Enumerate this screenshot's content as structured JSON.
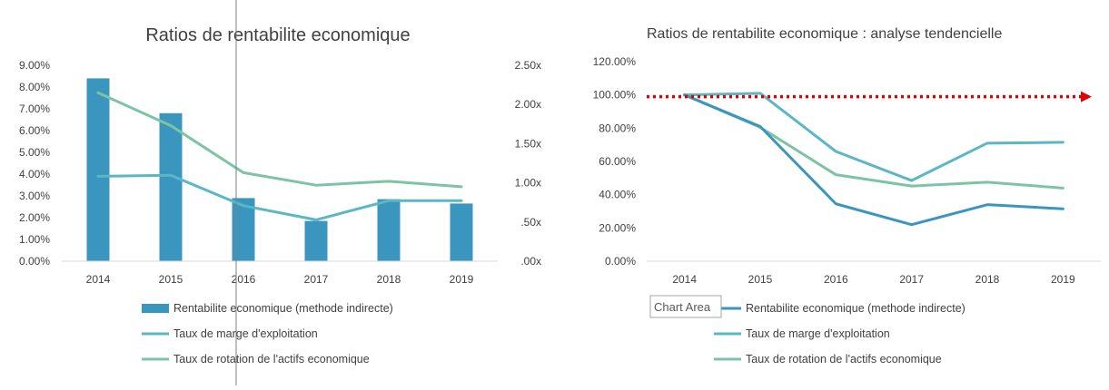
{
  "colors": {
    "rentabilite": "#3a96be",
    "marge": "#5bb7c4",
    "rotation": "#7dc4a4",
    "trend_arrow": "#e00000",
    "axis": "#d9d9d9",
    "text": "#404040"
  },
  "chart_data": [
    {
      "type": "bar",
      "title": "Ratios de rentabilite economique",
      "categories": [
        "2014",
        "2015",
        "2016",
        "2017",
        "2018",
        "2019"
      ],
      "y_left": {
        "ylim": [
          0,
          0.09
        ],
        "tick_labels": [
          "0.00%",
          "1.00%",
          "2.00%",
          "3.00%",
          "4.00%",
          "5.00%",
          "6.00%",
          "7.00%",
          "8.00%",
          "9.00%"
        ]
      },
      "y_right": {
        "ylim": [
          0,
          2.5
        ],
        "tick_labels": [
          ".00x",
          ".50x",
          "1.00x",
          "1.50x",
          "2.00x",
          "2.50x"
        ]
      },
      "grid": false,
      "legend_position": "bottom",
      "series": [
        {
          "name": "Rentabilite economique (methode indirecte)",
          "type": "bar",
          "axis": "left",
          "values": [
            0.084,
            0.068,
            0.029,
            0.0185,
            0.0285,
            0.0265
          ]
        },
        {
          "name": "Taux de marge d'exploitation",
          "type": "line",
          "axis": "left",
          "values": [
            0.039,
            0.0395,
            0.0255,
            0.019,
            0.0278,
            0.0278
          ]
        },
        {
          "name": "Taux de rotation de l'actifs economique",
          "type": "line",
          "axis": "right",
          "values": [
            2.15,
            1.73,
            1.13,
            0.97,
            1.02,
            0.95
          ]
        }
      ]
    },
    {
      "type": "line",
      "title": "Ratios de rentabilite economique : analyse tendencielle",
      "categories": [
        "2014",
        "2015",
        "2016",
        "2017",
        "2018",
        "2019"
      ],
      "ylim": [
        0,
        1.2
      ],
      "tick_labels": [
        "0.00%",
        "20.00%",
        "40.00%",
        "60.00%",
        "80.00%",
        "100.00%",
        "120.00%"
      ],
      "grid": false,
      "legend_position": "bottom",
      "reference_line": {
        "value": 1.0,
        "style": "dotted-arrow"
      },
      "series": [
        {
          "name": "Rentabilite economique (methode indirecte)",
          "values": [
            1.0,
            0.81,
            0.345,
            0.22,
            0.34,
            0.315
          ]
        },
        {
          "name": "Taux de marge d'exploitation",
          "values": [
            1.0,
            1.01,
            0.66,
            0.485,
            0.71,
            0.715
          ]
        },
        {
          "name": "Taux de rotation de l'actifs economique",
          "values": [
            1.0,
            0.805,
            0.52,
            0.452,
            0.475,
            0.44
          ]
        }
      ]
    }
  ],
  "tooltip": {
    "label": "Chart Area"
  }
}
